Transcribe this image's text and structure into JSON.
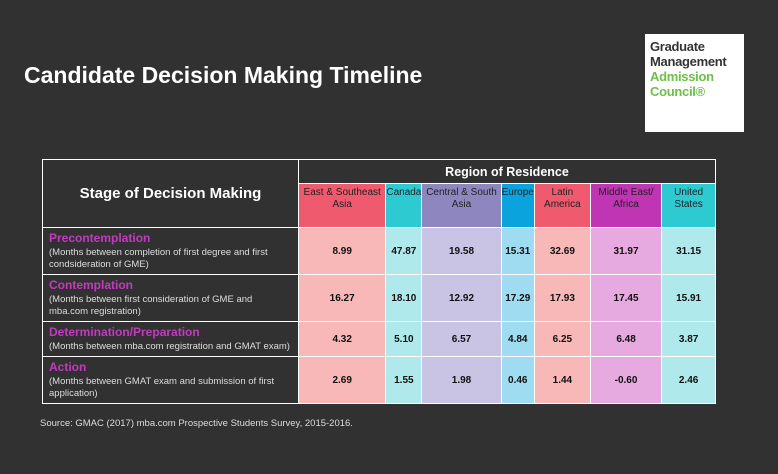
{
  "title": "Candidate Decision Making Timeline",
  "logo": {
    "line1": "Graduate",
    "line2": "Management",
    "line3": "Admission",
    "line4": "Council®"
  },
  "source": "Source: GMAC (2017) mba.com Prospective Students Survey, 2015-2016.",
  "chart_data": {
    "type": "table",
    "row_header": "Stage of Decision Making",
    "column_group": "Region of Residence",
    "columns": [
      {
        "label": "East & Southeast Asia",
        "header_color": "#f05a6e",
        "cell_color": "#f8b8b8"
      },
      {
        "label": "Canada",
        "header_color": "#2ecad2",
        "cell_color": "#afe9ec"
      },
      {
        "label": "Central & South Asia",
        "header_color": "#8e86bf",
        "cell_color": "#c9c4e4"
      },
      {
        "label": "Europe",
        "header_color": "#0ba3dd",
        "cell_color": "#9fdcf2"
      },
      {
        "label": "Latin America",
        "header_color": "#f05a6e",
        "cell_color": "#f8b8b8"
      },
      {
        "label": "Middle East/ Africa",
        "header_color": "#bf35b4",
        "cell_color": "#e6a9e0"
      },
      {
        "label": "United States",
        "header_color": "#2ecad2",
        "cell_color": "#afe9ec"
      }
    ],
    "rows": [
      {
        "stage": "Precontemplation",
        "desc": "(Months between completion of first degree and first condsideration of GME)",
        "values": [
          "8.99",
          "47.87",
          "19.58",
          "15.31",
          "32.69",
          "31.97",
          "31.15"
        ]
      },
      {
        "stage": "Contemplation",
        "desc": "(Months between first consideration of GME and mba.com registration)",
        "values": [
          "16.27",
          "18.10",
          "12.92",
          "17.29",
          "17.93",
          "17.45",
          "15.91"
        ]
      },
      {
        "stage": "Determination/Preparation",
        "desc": "(Months between mba.com registration and GMAT exam)",
        "values": [
          "4.32",
          "5.10",
          "6.57",
          "4.84",
          "6.25",
          "6.48",
          "3.87"
        ]
      },
      {
        "stage": "Action",
        "desc": "(Months between GMAT exam and submission of first application)",
        "values": [
          "2.69",
          "1.55",
          "1.98",
          "0.46",
          "1.44",
          "-0.60",
          "2.46"
        ]
      }
    ]
  }
}
